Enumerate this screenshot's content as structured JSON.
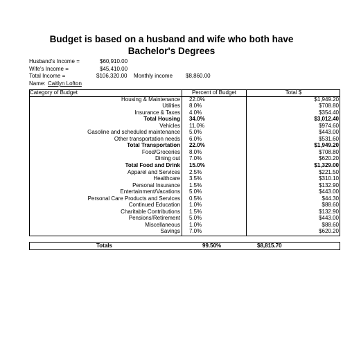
{
  "title_line1": "Budget is based on a husband and wife who both have",
  "title_line2": "Bachelor's Degrees",
  "info": {
    "husband_label": "Husband's Income =",
    "husband_value": "$60,910.00",
    "wife_label": "Wife's Income =",
    "wife_value": "$45,410.00",
    "total_label": "Total Income =",
    "total_value": "$106,320.00",
    "monthly_label": "Monthly income",
    "monthly_value": "$8,860.00",
    "name_label": "Name:",
    "name_value": "Caitlyn Lofton"
  },
  "table": {
    "headers": [
      "Category of Budget",
      "Percent of Budget",
      "Total $"
    ],
    "rows": [
      {
        "category": "Housing & Maintenance",
        "percent": "22.0%",
        "total": "$1,949.20",
        "bold": false
      },
      {
        "category": "Utilities",
        "percent": "8.0%",
        "total": "$708.80",
        "bold": false
      },
      {
        "category": "Insurance & Taxes",
        "percent": "4.0%",
        "total": "$354.40",
        "bold": false
      },
      {
        "category": "Total Housing",
        "percent": "34.0%",
        "total": "$3,012.40",
        "bold": true
      },
      {
        "category": "Vehicles",
        "percent": "11.0%",
        "total": "$974.60",
        "bold": false
      },
      {
        "category": "Gasoline and scheduled maintenance",
        "percent": "5.0%",
        "total": "$443.00",
        "bold": false
      },
      {
        "category": "Other transportation needs",
        "percent": "6.0%",
        "total": "$531.60",
        "bold": false
      },
      {
        "category": "Total Transportation",
        "percent": "22.0%",
        "total": "$1,949.20",
        "bold": true
      },
      {
        "category": "Food/Groceries",
        "percent": "8.0%",
        "total": "$708.80",
        "bold": false
      },
      {
        "category": "Dining out",
        "percent": "7.0%",
        "total": "$620.20",
        "bold": false
      },
      {
        "category": "Total Food and Drink",
        "percent": "15.0%",
        "total": "$1,329.00",
        "bold": true
      },
      {
        "category": "Apparel and Services",
        "percent": "2.5%",
        "total": "$221.50",
        "bold": false
      },
      {
        "category": "Healthcare",
        "percent": "3.5%",
        "total": "$310.10",
        "bold": false
      },
      {
        "category": "Personal Insurance",
        "percent": "1.5%",
        "total": "$132.90",
        "bold": false
      },
      {
        "category": "Entertainment/Vacations",
        "percent": "5.0%",
        "total": "$443.00",
        "bold": false
      },
      {
        "category": "Personal Care Products and Services",
        "percent": "0.5%",
        "total": "$44.30",
        "bold": false
      },
      {
        "category": "Continued Education",
        "percent": "1.0%",
        "total": "$88.60",
        "bold": false
      },
      {
        "category": "Charitable Contributions",
        "percent": "1.5%",
        "total": "$132.90",
        "bold": false
      },
      {
        "category": "Pensions/Retirement",
        "percent": "5.0%",
        "total": "$443.00",
        "bold": false
      },
      {
        "category": "Miscellaneous",
        "percent": "1.0%",
        "total": "$88.60",
        "bold": false
      },
      {
        "category": "Savings",
        "percent": "7.0%",
        "total": "$620.20",
        "bold": false
      }
    ]
  },
  "totals": {
    "label": "Totals",
    "percent": "99.50%",
    "total": "$8,815.70"
  }
}
